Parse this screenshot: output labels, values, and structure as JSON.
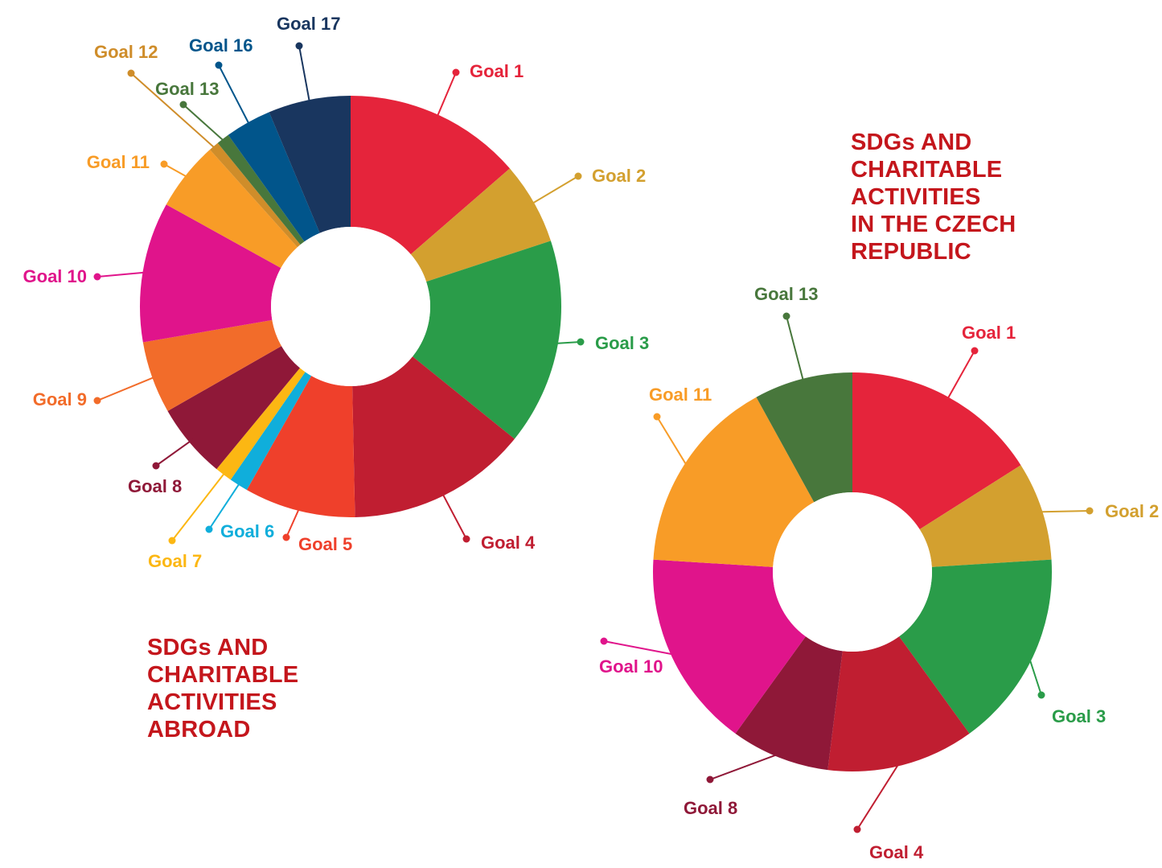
{
  "chart_data": [
    {
      "type": "pie",
      "title": "SDGs AND CHARITABLE ACTIVITIES ABROAD",
      "title_lines": [
        "SDGs AND",
        "CHARITABLE",
        "ACTIVITIES",
        "ABROAD"
      ],
      "donut": true,
      "slices": [
        {
          "label": "Goal 1",
          "value": 12.3,
          "color": "#e5243b"
        },
        {
          "label": "Goal 2",
          "value": 5.7,
          "color": "#d3a02f"
        },
        {
          "label": "Goal 3",
          "value": 14.3,
          "color": "#2a9c49"
        },
        {
          "label": "Goal 4",
          "value": 12.5,
          "color": "#c01e31"
        },
        {
          "label": "Goal 5",
          "value": 7.7,
          "color": "#ef402b"
        },
        {
          "label": "Goal 6",
          "value": 1.3,
          "color": "#10aedb"
        },
        {
          "label": "Goal 7",
          "value": 1.2,
          "color": "#fcb713"
        },
        {
          "label": "Goal 8",
          "value": 5.2,
          "color": "#8f1838"
        },
        {
          "label": "Goal 9",
          "value": 5.0,
          "color": "#f26c2a"
        },
        {
          "label": "Goal 10",
          "value": 9.7,
          "color": "#e0148b"
        },
        {
          "label": "Goal 11",
          "value": 4.8,
          "color": "#f89c27"
        },
        {
          "label": "Goal 12",
          "value": 0.7,
          "color": "#cf8d2a"
        },
        {
          "label": "Goal 13",
          "value": 0.9,
          "color": "#48773c"
        },
        {
          "label": "Goal 16",
          "value": 3.2,
          "color": "#01558b"
        },
        {
          "label": "Goal 17",
          "value": 5.7,
          "color": "#19365f"
        }
      ]
    },
    {
      "type": "pie",
      "title": "SDGs AND CHARITABLE ACTIVITIES IN THE CZECH REPUBLIC",
      "title_lines": [
        "SDGs AND",
        "CHARITABLE",
        "ACTIVITIES",
        "IN THE CZECH",
        "REPUBLIC"
      ],
      "donut": true,
      "slices": [
        {
          "label": "Goal 1",
          "value": 15.4,
          "color": "#e5243b"
        },
        {
          "label": "Goal 2",
          "value": 7.7,
          "color": "#d3a02f"
        },
        {
          "label": "Goal 3",
          "value": 15.4,
          "color": "#2a9c49"
        },
        {
          "label": "Goal 4",
          "value": 11.5,
          "color": "#c01e31"
        },
        {
          "label": "Goal 8",
          "value": 7.7,
          "color": "#8f1838"
        },
        {
          "label": "Goal 10",
          "value": 15.4,
          "color": "#e0148b"
        },
        {
          "label": "Goal 11",
          "value": 15.4,
          "color": "#f89c27"
        },
        {
          "label": "Goal 13",
          "value": 7.7,
          "color": "#48773c"
        }
      ]
    }
  ]
}
